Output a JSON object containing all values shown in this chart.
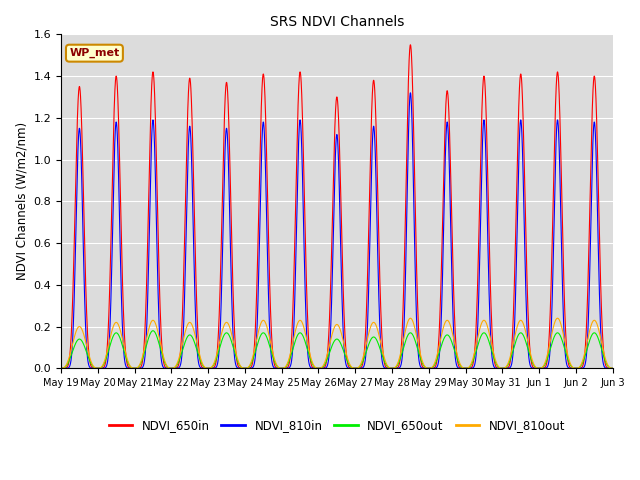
{
  "title": "SRS NDVI Channels",
  "ylabel": "NDVI Channels (W/m2/nm)",
  "annotation": "WP_met",
  "ylim": [
    0.0,
    1.6
  ],
  "background_color": "#dcdcdc",
  "colors": {
    "NDVI_650in": "#ff0000",
    "NDVI_810in": "#0000ff",
    "NDVI_650out": "#00ee00",
    "NDVI_810out": "#ffaa00"
  },
  "x_labels": [
    "May 19",
    "May 20",
    "May 21",
    "May 22",
    "May 23",
    "May 24",
    "May 25",
    "May 26",
    "May 27",
    "May 28",
    "May 29",
    "May 30",
    "May 31",
    "Jun 1",
    "Jun 2",
    "Jun 3"
  ],
  "peaks_650in": [
    1.35,
    1.4,
    1.42,
    1.39,
    1.37,
    1.41,
    1.42,
    1.3,
    1.38,
    1.55,
    1.33,
    1.4,
    1.41,
    1.42,
    1.4
  ],
  "peaks_810in": [
    1.15,
    1.18,
    1.19,
    1.16,
    1.15,
    1.18,
    1.19,
    1.12,
    1.16,
    1.32,
    1.18,
    1.19,
    1.19,
    1.19,
    1.18
  ],
  "peaks_650out": [
    0.14,
    0.17,
    0.18,
    0.16,
    0.17,
    0.17,
    0.17,
    0.14,
    0.15,
    0.17,
    0.16,
    0.17,
    0.17,
    0.17,
    0.17
  ],
  "peaks_810out": [
    0.2,
    0.22,
    0.23,
    0.22,
    0.22,
    0.23,
    0.23,
    0.21,
    0.22,
    0.24,
    0.23,
    0.23,
    0.23,
    0.24,
    0.23
  ],
  "n_cycles": 15,
  "pts_per_day": 200
}
